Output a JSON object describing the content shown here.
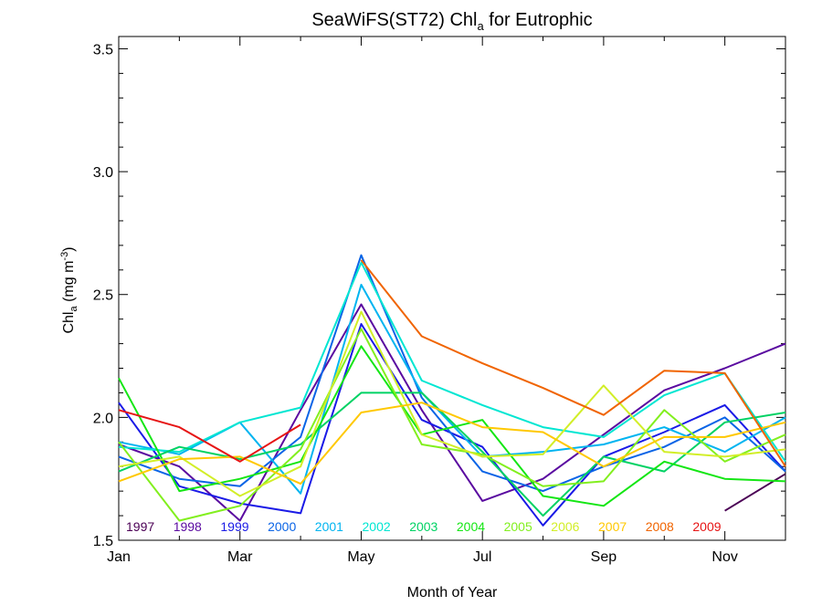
{
  "chart_data": {
    "type": "line",
    "title_main": "SeaWiFS(ST72) Chl",
    "title_sub": "a",
    "title_tail": " for Eutrophic",
    "xlabel": "Month of Year",
    "ylabel_main": "Chl",
    "ylabel_sub": "a",
    "ylabel_unit_open": " (mg m",
    "ylabel_unit_sup": "-3",
    "ylabel_unit_close": ")",
    "xlim": [
      1,
      12
    ],
    "ylim": [
      1.5,
      3.55
    ],
    "x_ticks": [
      {
        "x": 1,
        "label": "Jan"
      },
      {
        "x": 3,
        "label": "Mar"
      },
      {
        "x": 5,
        "label": "May"
      },
      {
        "x": 7,
        "label": "Jul"
      },
      {
        "x": 9,
        "label": "Sep"
      },
      {
        "x": 11,
        "label": "Nov"
      }
    ],
    "y_ticks": [
      {
        "y": 1.5,
        "label": "1.5"
      },
      {
        "y": 2.0,
        "label": "2.0"
      },
      {
        "y": 2.5,
        "label": "2.5"
      },
      {
        "y": 3.0,
        "label": "3.0"
      },
      {
        "y": 3.5,
        "label": "3.5"
      }
    ],
    "x": [
      1,
      2,
      3,
      4,
      5,
      6,
      7,
      8,
      9,
      10,
      11,
      12
    ],
    "series": [
      {
        "name": "1997",
        "color": "#4b0055",
        "values": [
          null,
          null,
          null,
          null,
          null,
          null,
          null,
          null,
          null,
          null,
          1.62,
          1.77
        ]
      },
      {
        "name": "1998",
        "color": "#5a0aa0",
        "values": [
          1.89,
          1.8,
          1.58,
          2.03,
          2.46,
          2.03,
          1.66,
          1.75,
          1.93,
          2.11,
          2.2,
          2.3
        ]
      },
      {
        "name": "1999",
        "color": "#1a1ae6",
        "values": [
          2.06,
          1.72,
          1.65,
          1.61,
          2.38,
          1.99,
          1.88,
          1.56,
          1.84,
          1.94,
          2.05,
          1.78
        ]
      },
      {
        "name": "2000",
        "color": "#0a64e6",
        "values": [
          1.84,
          1.75,
          1.72,
          1.92,
          2.66,
          2.08,
          1.78,
          1.7,
          1.8,
          1.88,
          2.0,
          1.78
        ]
      },
      {
        "name": "2001",
        "color": "#00b4f0",
        "values": [
          1.9,
          1.85,
          1.98,
          1.69,
          2.54,
          2.1,
          1.84,
          1.86,
          1.89,
          1.96,
          1.86,
          2.0
        ]
      },
      {
        "name": "2002",
        "color": "#00e6d2",
        "values": [
          1.88,
          1.86,
          1.98,
          2.04,
          2.63,
          2.15,
          2.05,
          1.96,
          1.92,
          2.09,
          2.18,
          1.82
        ]
      },
      {
        "name": "2003",
        "color": "#00d264",
        "values": [
          1.78,
          1.88,
          1.83,
          1.89,
          2.1,
          2.1,
          1.86,
          1.6,
          1.84,
          1.78,
          1.98,
          2.02
        ]
      },
      {
        "name": "2004",
        "color": "#14e614",
        "values": [
          2.16,
          1.7,
          1.75,
          1.82,
          2.29,
          1.93,
          1.99,
          1.68,
          1.64,
          1.82,
          1.75,
          1.74
        ]
      },
      {
        "name": "2005",
        "color": "#82ef1e",
        "values": [
          1.9,
          1.58,
          1.64,
          1.87,
          2.36,
          1.89,
          1.85,
          1.72,
          1.74,
          2.03,
          1.82,
          1.93
        ]
      },
      {
        "name": "2006",
        "color": "#d2ee28",
        "values": [
          1.8,
          1.84,
          1.68,
          1.8,
          2.43,
          1.93,
          1.84,
          1.85,
          2.13,
          1.86,
          1.84,
          1.87
        ]
      },
      {
        "name": "2007",
        "color": "#ffc800",
        "values": [
          1.74,
          1.83,
          1.84,
          1.73,
          2.02,
          2.06,
          1.96,
          1.94,
          1.8,
          1.92,
          1.92,
          1.98
        ]
      },
      {
        "name": "2008",
        "color": "#f06400",
        "values": [
          null,
          null,
          null,
          null,
          2.64,
          2.33,
          2.22,
          2.12,
          2.01,
          2.19,
          2.18,
          1.8
        ]
      },
      {
        "name": "2009",
        "color": "#e61414",
        "values": [
          2.03,
          1.96,
          1.82,
          1.97,
          null,
          null,
          null,
          null,
          null,
          null,
          null,
          null
        ]
      }
    ]
  }
}
